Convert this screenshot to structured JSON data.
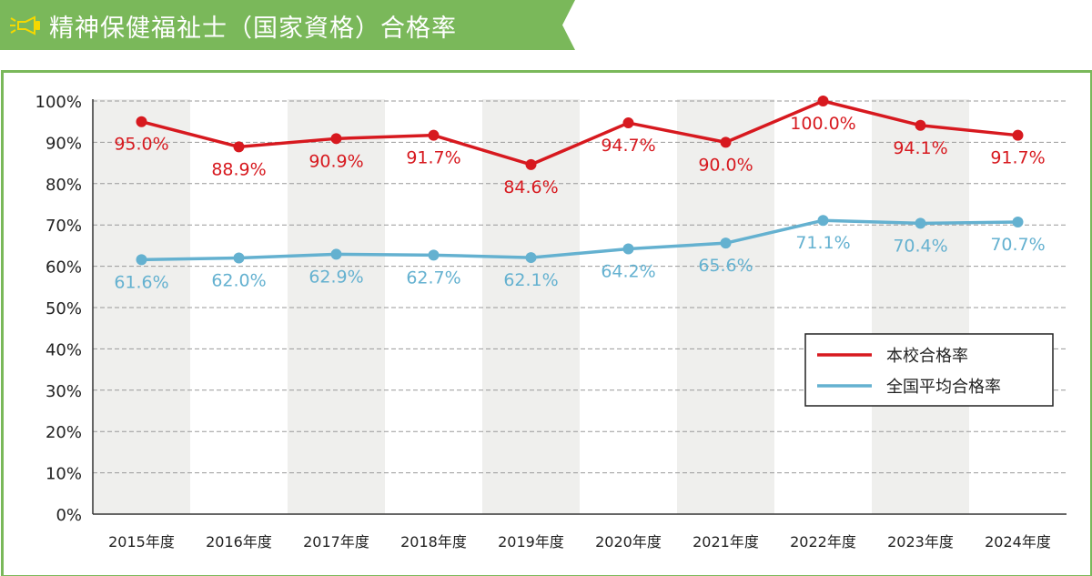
{
  "header": {
    "title": "精神保健福祉士（国家資格）合格率",
    "icon": "megaphone-icon"
  },
  "colors": {
    "banner": "#7ab85a",
    "school": "#d7191f",
    "national": "#64b1d0",
    "band": "#efefed"
  },
  "chart_data": {
    "type": "line",
    "categories": [
      "2015年度",
      "2016年度",
      "2017年度",
      "2018年度",
      "2019年度",
      "2020年度",
      "2021年度",
      "2022年度",
      "2023年度",
      "2024年度"
    ],
    "yticks": [
      "0%",
      "10%",
      "20%",
      "30%",
      "40%",
      "50%",
      "60%",
      "70%",
      "80%",
      "90%",
      "100%"
    ],
    "ylim": [
      0,
      100
    ],
    "grid": true,
    "legend_position": "bottom-right",
    "series": [
      {
        "name": "本校合格率",
        "values": [
          95.0,
          88.9,
          90.9,
          91.7,
          84.6,
          94.7,
          90.0,
          100.0,
          94.1,
          91.7
        ],
        "labels": [
          "95.0%",
          "88.9%",
          "90.9%",
          "91.7%",
          "84.6%",
          "94.7%",
          "90.0%",
          "100.0%",
          "94.1%",
          "91.7%"
        ]
      },
      {
        "name": "全国平均合格率",
        "values": [
          61.6,
          62.0,
          62.9,
          62.7,
          62.1,
          64.2,
          65.6,
          71.1,
          70.4,
          70.7
        ],
        "labels": [
          "61.6%",
          "62.0%",
          "62.9%",
          "62.7%",
          "62.1%",
          "64.2%",
          "65.6%",
          "71.1%",
          "70.4%",
          "70.7%"
        ]
      }
    ]
  }
}
